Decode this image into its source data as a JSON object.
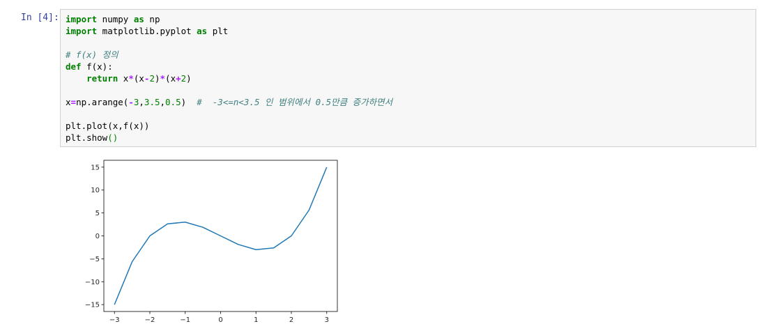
{
  "cell": {
    "prompt": "In [4]:",
    "code_lines": [
      [
        {
          "t": "import",
          "c": "kw"
        },
        {
          "t": " numpy "
        },
        {
          "t": "as",
          "c": "kw"
        },
        {
          "t": " np"
        }
      ],
      [
        {
          "t": "import",
          "c": "kw"
        },
        {
          "t": " matplotlib.pyplot "
        },
        {
          "t": "as",
          "c": "kw"
        },
        {
          "t": " plt"
        }
      ],
      [],
      [
        {
          "t": "# f(x) 정의",
          "c": "cm"
        }
      ],
      [
        {
          "t": "def",
          "c": "kw"
        },
        {
          "t": " f(x):"
        }
      ],
      [
        {
          "t": "    "
        },
        {
          "t": "return",
          "c": "kw"
        },
        {
          "t": " x"
        },
        {
          "t": "*",
          "c": "op"
        },
        {
          "t": "(x"
        },
        {
          "t": "-",
          "c": "op"
        },
        {
          "t": "2",
          "c": "num"
        },
        {
          "t": ")"
        },
        {
          "t": "*",
          "c": "op"
        },
        {
          "t": "(x"
        },
        {
          "t": "+",
          "c": "op"
        },
        {
          "t": "2",
          "c": "num"
        },
        {
          "t": ")"
        }
      ],
      [],
      [
        {
          "t": "x"
        },
        {
          "t": "=",
          "c": "op"
        },
        {
          "t": "np.arange("
        },
        {
          "t": "-",
          "c": "op"
        },
        {
          "t": "3",
          "c": "num"
        },
        {
          "t": ","
        },
        {
          "t": "3.5",
          "c": "num"
        },
        {
          "t": ","
        },
        {
          "t": "0.5",
          "c": "num"
        },
        {
          "t": ")  "
        },
        {
          "t": "#  -3<=n<3.5 인 범위에서 0.5만큼 증가하면서",
          "c": "cm"
        }
      ],
      [],
      [
        {
          "t": "plt.plot(x,f(x))"
        }
      ],
      [
        {
          "t": "plt.show"
        },
        {
          "t": "()",
          "c": "par"
        }
      ]
    ]
  },
  "chart_data": {
    "type": "line",
    "x": [
      -3,
      -2.5,
      -2,
      -1.5,
      -1,
      -0.5,
      0,
      0.5,
      1,
      1.5,
      2,
      2.5,
      3
    ],
    "series": [
      {
        "values": [
          -15,
          -5.625,
          0,
          2.625,
          3,
          1.875,
          0,
          -1.875,
          -3,
          -2.625,
          0,
          5.625,
          15
        ],
        "color": "#1f77b4"
      }
    ],
    "xlim": [
      -3.3,
      3.3
    ],
    "ylim": [
      -16.5,
      16.5
    ],
    "xticks": [
      -3,
      -2,
      -1,
      0,
      1,
      2,
      3
    ],
    "xtick_labels": [
      "−3",
      "−2",
      "−1",
      "0",
      "1",
      "2",
      "3"
    ],
    "yticks": [
      -15,
      -10,
      -5,
      0,
      5,
      10,
      15
    ],
    "ytick_labels": [
      "−15",
      "−10",
      "−5",
      "0",
      "5",
      "10",
      "15"
    ],
    "grid": false
  }
}
